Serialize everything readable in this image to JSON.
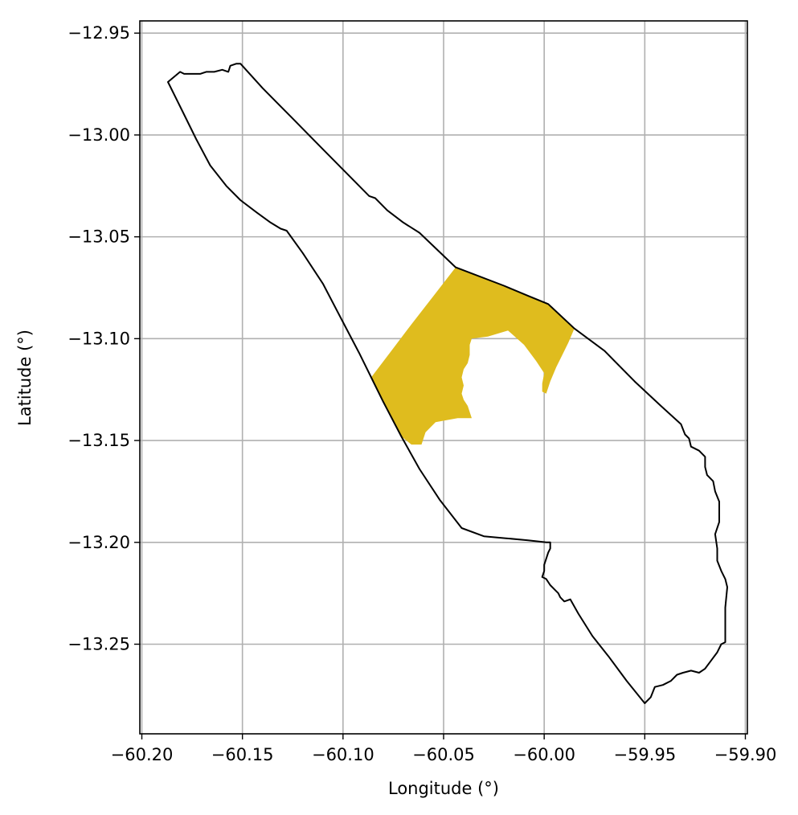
{
  "chart_data": {
    "type": "map",
    "xlabel": "Longitude (°)",
    "ylabel": "Latitude (°)",
    "xlim": [
      -60.201,
      -59.899
    ],
    "ylim": [
      -13.294,
      -12.944
    ],
    "xticks": [
      -60.2,
      -60.15,
      -60.1,
      -60.05,
      -60.0,
      -59.95,
      -59.9
    ],
    "xtick_labels": [
      "−60.20",
      "−60.15",
      "−60.10",
      "−60.05",
      "−60.00",
      "−59.95",
      "−59.90"
    ],
    "yticks": [
      -12.95,
      -13.0,
      -13.05,
      -13.1,
      -13.15,
      -13.2,
      -13.25
    ],
    "ytick_labels": [
      "−12.95",
      "−13.00",
      "−13.05",
      "−13.10",
      "−13.15",
      "−13.20",
      "−13.25"
    ],
    "grid": true,
    "colors": {
      "boundary": "#000000",
      "highlight": "#dfbc1e",
      "grid": "#b0b0b0"
    },
    "boundary": [
      [
        -60.187,
        -12.974
      ],
      [
        -60.181,
        -12.969
      ],
      [
        -60.179,
        -12.97
      ],
      [
        -60.175,
        -12.97
      ],
      [
        -60.173,
        -12.97
      ],
      [
        -60.171,
        -12.97
      ],
      [
        -60.168,
        -12.969
      ],
      [
        -60.164,
        -12.969
      ],
      [
        -60.16,
        -12.968
      ],
      [
        -60.157,
        -12.969
      ],
      [
        -60.156,
        -12.966
      ],
      [
        -60.153,
        -12.965
      ],
      [
        -60.151,
        -12.965
      ],
      [
        -60.14,
        -12.977
      ],
      [
        -60.125,
        -12.992
      ],
      [
        -60.11,
        -13.007
      ],
      [
        -60.096,
        -13.021
      ],
      [
        -60.087,
        -13.03
      ],
      [
        -60.084,
        -13.031
      ],
      [
        -60.078,
        -13.037
      ],
      [
        -60.07,
        -13.043
      ],
      [
        -60.062,
        -13.048
      ],
      [
        -60.044,
        -13.065
      ],
      [
        -60.02,
        -13.074
      ],
      [
        -60.008,
        -13.079
      ],
      [
        -59.998,
        -13.083
      ],
      [
        -59.985,
        -13.095
      ],
      [
        -59.97,
        -13.106
      ],
      [
        -59.955,
        -13.121
      ],
      [
        -59.942,
        -13.133
      ],
      [
        -59.932,
        -13.142
      ],
      [
        -59.93,
        -13.147
      ],
      [
        -59.928,
        -13.149
      ],
      [
        -59.927,
        -13.153
      ],
      [
        -59.923,
        -13.155
      ],
      [
        -59.92,
        -13.158
      ],
      [
        -59.92,
        -13.163
      ],
      [
        -59.919,
        -13.167
      ],
      [
        -59.916,
        -13.17
      ],
      [
        -59.915,
        -13.175
      ],
      [
        -59.913,
        -13.18
      ],
      [
        -59.913,
        -13.19
      ],
      [
        -59.915,
        -13.196
      ],
      [
        -59.914,
        -13.203
      ],
      [
        -59.914,
        -13.209
      ],
      [
        -59.912,
        -13.214
      ],
      [
        -59.91,
        -13.218
      ],
      [
        -59.909,
        -13.222
      ],
      [
        -59.91,
        -13.232
      ],
      [
        -59.91,
        -13.243
      ],
      [
        -59.91,
        -13.249
      ],
      [
        -59.912,
        -13.25
      ],
      [
        -59.914,
        -13.254
      ],
      [
        -59.917,
        -13.258
      ],
      [
        -59.92,
        -13.262
      ],
      [
        -59.923,
        -13.264
      ],
      [
        -59.927,
        -13.263
      ],
      [
        -59.931,
        -13.264
      ],
      [
        -59.934,
        -13.265
      ],
      [
        -59.937,
        -13.268
      ],
      [
        -59.941,
        -13.27
      ],
      [
        -59.945,
        -13.271
      ],
      [
        -59.947,
        -13.276
      ],
      [
        -59.95,
        -13.279
      ],
      [
        -59.959,
        -13.268
      ],
      [
        -59.968,
        -13.256
      ],
      [
        -59.976,
        -13.246
      ],
      [
        -59.983,
        -13.235
      ],
      [
        -59.987,
        -13.228
      ],
      [
        -59.99,
        -13.229
      ],
      [
        -59.992,
        -13.227
      ],
      [
        -59.993,
        -13.225
      ],
      [
        -59.995,
        -13.223
      ],
      [
        -59.997,
        -13.221
      ],
      [
        -59.999,
        -13.218
      ],
      [
        -60.001,
        -13.217
      ],
      [
        -60.0,
        -13.214
      ],
      [
        -60.0,
        -13.211
      ],
      [
        -59.999,
        -13.208
      ],
      [
        -59.998,
        -13.205
      ],
      [
        -59.997,
        -13.203
      ],
      [
        -59.997,
        -13.2
      ],
      [
        -59.999,
        -13.2
      ],
      [
        -60.008,
        -13.199
      ],
      [
        -60.019,
        -13.198
      ],
      [
        -60.03,
        -13.197
      ],
      [
        -60.041,
        -13.193
      ],
      [
        -60.052,
        -13.179
      ],
      [
        -60.062,
        -13.164
      ],
      [
        -60.071,
        -13.148
      ],
      [
        -60.08,
        -13.131
      ],
      [
        -60.086,
        -13.119
      ],
      [
        -60.092,
        -13.107
      ],
      [
        -60.101,
        -13.09
      ],
      [
        -60.11,
        -13.073
      ],
      [
        -60.12,
        -13.058
      ],
      [
        -60.128,
        -13.047
      ],
      [
        -60.131,
        -13.046
      ],
      [
        -60.136,
        -13.043
      ],
      [
        -60.143,
        -13.038
      ],
      [
        -60.151,
        -13.032
      ],
      [
        -60.158,
        -13.025
      ],
      [
        -60.166,
        -13.015
      ],
      [
        -60.173,
        -13.002
      ],
      [
        -60.18,
        -12.988
      ],
      [
        -60.187,
        -12.974
      ]
    ],
    "highlight": [
      [
        -60.044,
        -13.065
      ],
      [
        -60.02,
        -13.074
      ],
      [
        -60.008,
        -13.079
      ],
      [
        -59.998,
        -13.083
      ],
      [
        -59.985,
        -13.095
      ],
      [
        -59.988,
        -13.102
      ],
      [
        -59.991,
        -13.108
      ],
      [
        -59.994,
        -13.114
      ],
      [
        -59.997,
        -13.121
      ],
      [
        -59.999,
        -13.127
      ],
      [
        -60.001,
        -13.126
      ],
      [
        -60.001,
        -13.122
      ],
      [
        -60.0,
        -13.117
      ],
      [
        -60.004,
        -13.111
      ],
      [
        -60.01,
        -13.103
      ],
      [
        -60.018,
        -13.096
      ],
      [
        -60.028,
        -13.099
      ],
      [
        -60.036,
        -13.1
      ],
      [
        -60.037,
        -13.103
      ],
      [
        -60.037,
        -13.108
      ],
      [
        -60.038,
        -13.112
      ],
      [
        -60.04,
        -13.115
      ],
      [
        -60.041,
        -13.119
      ],
      [
        -60.04,
        -13.123
      ],
      [
        -60.041,
        -13.127
      ],
      [
        -60.04,
        -13.13
      ],
      [
        -60.038,
        -13.133
      ],
      [
        -60.037,
        -13.136
      ],
      [
        -60.036,
        -13.139
      ],
      [
        -60.043,
        -13.139
      ],
      [
        -60.054,
        -13.141
      ],
      [
        -60.059,
        -13.146
      ],
      [
        -60.061,
        -13.152
      ],
      [
        -60.066,
        -13.152
      ],
      [
        -60.071,
        -13.148
      ],
      [
        -60.08,
        -13.131
      ],
      [
        -60.086,
        -13.119
      ],
      [
        -60.076,
        -13.106
      ],
      [
        -60.066,
        -13.093
      ],
      [
        -60.055,
        -13.079
      ],
      [
        -60.044,
        -13.065
      ]
    ]
  }
}
